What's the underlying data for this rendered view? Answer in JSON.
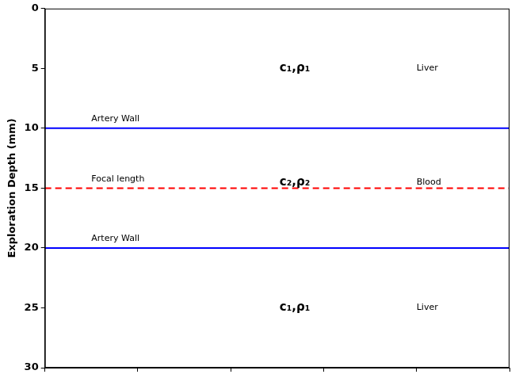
{
  "chart_data": {
    "type": "line",
    "ylabel": "Exploration Depth (mm)",
    "x": [
      0,
      1
    ],
    "xlim": [
      0,
      1
    ],
    "xticks": [
      0,
      0.2,
      0.4,
      0.6,
      0.8,
      1
    ],
    "ylim": [
      30,
      0
    ],
    "yticks": [
      0,
      5,
      10,
      15,
      20,
      25,
      30
    ],
    "grid": false,
    "legend": false,
    "tick_labels": "y",
    "series": [
      {
        "name": "Artery Wall",
        "color": "#0000ff",
        "line_style": "solid",
        "values": [
          10,
          10
        ]
      },
      {
        "name": "Focal length",
        "color": "#ff0000",
        "line_style": "dashed",
        "values": [
          15,
          15
        ]
      },
      {
        "name": "Artery Wall",
        "color": "#0000ff",
        "line_style": "solid",
        "values": [
          20,
          20
        ]
      }
    ],
    "layers": [
      {
        "medium": "c₁,ρ₁",
        "tissue": "Liver",
        "y": 5
      },
      {
        "medium": "c₂,ρ₂",
        "tissue": "Blood",
        "y": 14.5
      },
      {
        "medium": "c₁,ρ₁",
        "tissue": "Liver",
        "y": 25
      }
    ]
  }
}
